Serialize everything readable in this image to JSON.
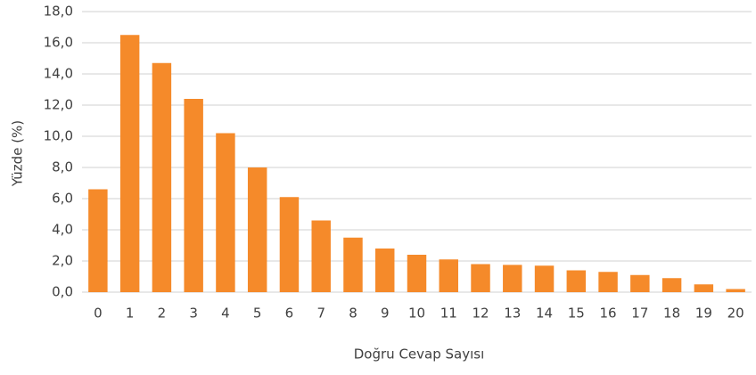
{
  "chart_data": {
    "type": "bar",
    "x_label": "Doğru Cevap Sayısı",
    "y_label": "Yüzde (%)",
    "categories": [
      "0",
      "1",
      "2",
      "3",
      "4",
      "5",
      "6",
      "7",
      "8",
      "9",
      "10",
      "11",
      "12",
      "13",
      "14",
      "15",
      "16",
      "17",
      "18",
      "19",
      "20"
    ],
    "values": [
      6.6,
      16.5,
      14.7,
      12.4,
      10.2,
      8.0,
      6.1,
      4.6,
      3.5,
      2.8,
      2.4,
      2.1,
      1.8,
      1.75,
      1.7,
      1.4,
      1.3,
      1.1,
      0.9,
      0.5,
      0.2
    ],
    "color": "#f58a2a",
    "ylim": [
      0,
      18
    ],
    "yticks": [
      {
        "value": 0,
        "label": "0,0"
      },
      {
        "value": 2,
        "label": "2,0"
      },
      {
        "value": 4,
        "label": "4,0"
      },
      {
        "value": 6,
        "label": "6,0"
      },
      {
        "value": 8,
        "label": "8,0"
      },
      {
        "value": 10,
        "label": "10,0"
      },
      {
        "value": 12,
        "label": "12,0"
      },
      {
        "value": 14,
        "label": "14,0"
      },
      {
        "value": 16,
        "label": "16,0"
      },
      {
        "value": 18,
        "label": "18,0"
      }
    ],
    "grid": true
  }
}
